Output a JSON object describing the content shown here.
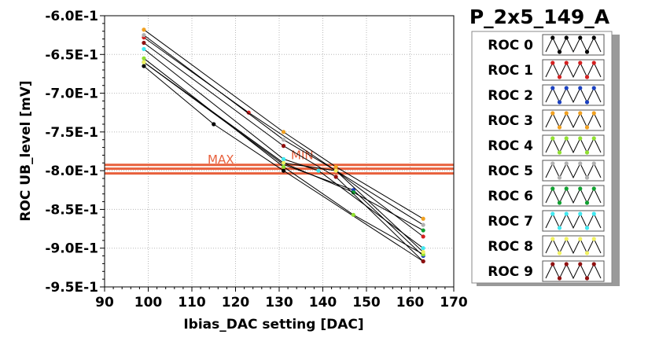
{
  "chart_data": {
    "type": "line",
    "title": "P_2x5_149_A",
    "xlabel": "Ibias_DAC setting [DAC]",
    "ylabel": "ROC UB_level [mV]",
    "xlim": [
      90,
      170
    ],
    "ylim": [
      -0.95,
      -0.6
    ],
    "x_ticks": [
      90,
      100,
      110,
      120,
      130,
      140,
      150,
      160,
      170
    ],
    "x_tick_labels": [
      "90",
      "100",
      "110",
      "120",
      "130",
      "140",
      "150",
      "160",
      "170"
    ],
    "y_ticks": [
      -0.6,
      -0.65,
      -0.7,
      -0.75,
      -0.8,
      -0.85,
      -0.9,
      -0.95
    ],
    "y_tick_labels": [
      "-6.0E-1",
      "-6.5E-1",
      "-7.0E-1",
      "-7.5E-1",
      "-8.0E-1",
      "-8.5E-1",
      "-9.0E-1",
      "-9.5E-1"
    ],
    "grid": true,
    "legend_position": "right",
    "thresholds": [
      {
        "label": "MAX",
        "y": -0.7925,
        "color": "#e8603c"
      },
      {
        "label": "",
        "y": -0.7975,
        "color": "#e8603c"
      },
      {
        "label": "MIN",
        "y": -0.8035,
        "color": "#e8603c"
      }
    ],
    "series": [
      {
        "name": "ROC 0",
        "color": "#000000",
        "x": [
          99,
          115,
          131,
          163
        ],
        "y": [
          -0.665,
          -0.74,
          -0.8,
          -0.917
        ]
      },
      {
        "name": "ROC 1",
        "color": "#d42020",
        "x": [
          99,
          123,
          143,
          163
        ],
        "y": [
          -0.628,
          -0.725,
          -0.8,
          -0.885
        ]
      },
      {
        "name": "ROC 2",
        "color": "#1a40c0",
        "x": [
          99,
          131,
          147,
          163
        ],
        "y": [
          -0.66,
          -0.792,
          -0.825,
          -0.91
        ]
      },
      {
        "name": "ROC 3",
        "color": "#f0a020",
        "x": [
          99,
          131,
          143,
          163
        ],
        "y": [
          -0.618,
          -0.75,
          -0.795,
          -0.862
        ]
      },
      {
        "name": "ROC 4",
        "color": "#90e030",
        "x": [
          99,
          131,
          147,
          163
        ],
        "y": [
          -0.655,
          -0.795,
          -0.857,
          -0.908
        ]
      },
      {
        "name": "ROC 5",
        "color": "#b0b0b0",
        "x": [
          99,
          131,
          143,
          163
        ],
        "y": [
          -0.625,
          -0.76,
          -0.8,
          -0.87
        ]
      },
      {
        "name": "ROC 6",
        "color": "#10a030",
        "x": [
          99,
          131,
          147,
          163
        ],
        "y": [
          -0.66,
          -0.79,
          -0.828,
          -0.877
        ]
      },
      {
        "name": "ROC 7",
        "color": "#40e8f0",
        "x": [
          99,
          131,
          139,
          163
        ],
        "y": [
          -0.643,
          -0.785,
          -0.8,
          -0.9
        ]
      },
      {
        "name": "ROC 8",
        "color": "#f0f060",
        "x": [
          99,
          131,
          143,
          163
        ],
        "y": [
          -0.66,
          -0.79,
          -0.8,
          -0.905
        ]
      },
      {
        "name": "ROC 9",
        "color": "#901010",
        "x": [
          99,
          131,
          143,
          163
        ],
        "y": [
          -0.635,
          -0.768,
          -0.808,
          -0.917
        ]
      }
    ]
  }
}
